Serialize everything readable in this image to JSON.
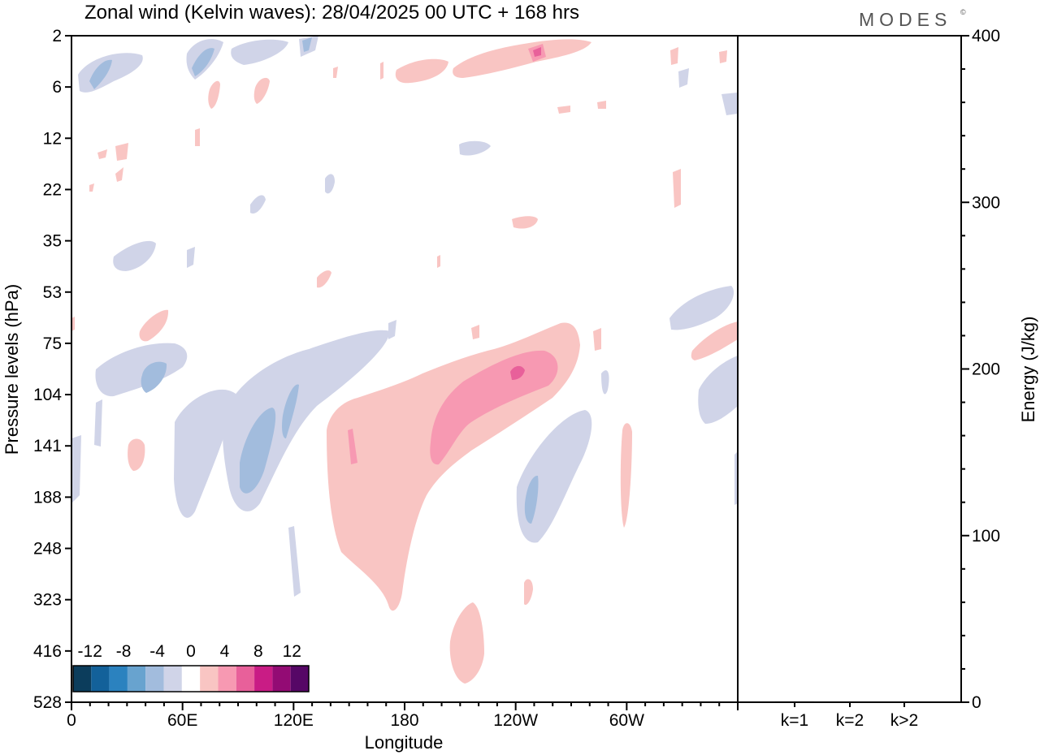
{
  "chart_data": {
    "type": "heatmap",
    "title": "Zonal wind (Kelvin waves):  28/04/2025  00 UTC  + 168 hrs",
    "brand": "MODES",
    "brand_mark": "©",
    "xlabel": "Longitude",
    "ylabel": "Pressure levels (hPa)",
    "x_ticks": [
      "0",
      "60E",
      "120E",
      "180",
      "120W",
      "60W"
    ],
    "y_ticks": [
      "2",
      "6",
      "12",
      "22",
      "35",
      "53",
      "75",
      "104",
      "141",
      "188",
      "248",
      "323",
      "416",
      "528"
    ],
    "y_scale": "model levels (nonlinear)",
    "colorbar": {
      "tick_labels": [
        "-12",
        "-8",
        "-4",
        "0",
        "4",
        "8",
        "12"
      ],
      "bin_edges": [
        -14,
        -12,
        -10,
        -8,
        -6,
        -4,
        -2,
        2,
        4,
        6,
        8,
        10,
        12,
        14
      ],
      "colors": [
        "#0c3d5c",
        "#13619a",
        "#2b82bf",
        "#68a3cf",
        "#a2bcdd",
        "#d0d4e8",
        "#ffffff",
        "#f9c5c3",
        "#f799b2",
        "#e8609a",
        "#c91c85",
        "#930b74",
        "#560766"
      ]
    },
    "contour_regions": [
      {
        "lon": [
          10,
          50
        ],
        "p": [
          6,
          2
        ],
        "wind": -2,
        "peak": -5
      },
      {
        "lon": [
          50,
          80
        ],
        "p": [
          6,
          2
        ],
        "wind": -2,
        "peak": -5
      },
      {
        "lon": [
          115,
          145
        ],
        "p": [
          6,
          2
        ],
        "wind": -2,
        "peak": -5
      },
      {
        "lon": [
          175,
          245
        ],
        "p": [
          6,
          2
        ],
        "wind": 2,
        "peak": 5
      },
      {
        "lon": [
          80,
          110
        ],
        "p": [
          208,
          80
        ],
        "wind": -2,
        "peak": -5
      },
      {
        "lon": [
          20,
          75
        ],
        "p": [
          120,
          85
        ],
        "wind": -2,
        "peak": -5
      },
      {
        "lon": [
          145,
          215
        ],
        "p": [
          320,
          110
        ],
        "wind": 2,
        "peak": 3
      },
      {
        "lon": [
          195,
          275
        ],
        "p": [
          140,
          75
        ],
        "wind": 2,
        "peak": 7
      },
      {
        "lon": [
          240,
          275
        ],
        "p": [
          260,
          108
        ],
        "wind": -2,
        "peak": -5
      },
      {
        "lon": [
          205,
          240
        ],
        "p": [
          540,
          330
        ],
        "wind": 2,
        "peak": 3
      },
      {
        "lon": [
          325,
          360
        ],
        "p": [
          90,
          73
        ],
        "wind": 2,
        "peak": 3
      },
      {
        "lon": [
          325,
          360
        ],
        "p": [
          64,
          55
        ],
        "wind": -2,
        "peak": -3
      },
      {
        "lon": [
          325,
          360
        ],
        "p": [
          120,
          95
        ],
        "wind": -2,
        "peak": -3
      }
    ],
    "energy_panel": {
      "ylabel": "Energy (J/kg)",
      "ylim": [
        0,
        400
      ],
      "y_ticks": [
        "0",
        "100",
        "200",
        "300",
        "400"
      ],
      "categories": [
        "k=1",
        "k=2",
        "k>2"
      ],
      "values": [
        0.5,
        0.4,
        0.3
      ]
    }
  }
}
